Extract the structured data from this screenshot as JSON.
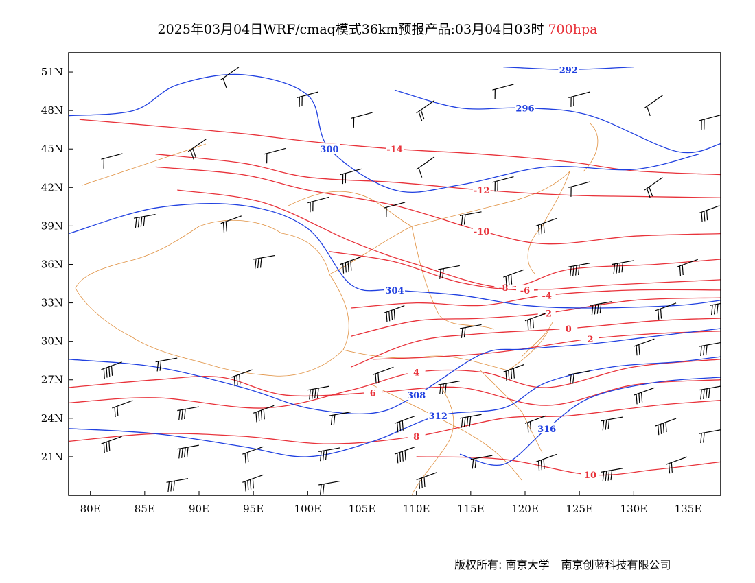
{
  "header": {
    "title": "2025年03月04日WRF/cmaq模式36km预报产品:03月04日03时",
    "level": "700hpa"
  },
  "map": {
    "lon_range": [
      78,
      138
    ],
    "lat_range": [
      18,
      52.5
    ],
    "x_ticks": [
      {
        "lon": 80,
        "label": "80E"
      },
      {
        "lon": 85,
        "label": "85E"
      },
      {
        "lon": 90,
        "label": "90E"
      },
      {
        "lon": 95,
        "label": "95E"
      },
      {
        "lon": 100,
        "label": "100E"
      },
      {
        "lon": 105,
        "label": "105E"
      },
      {
        "lon": 110,
        "label": "110E"
      },
      {
        "lon": 115,
        "label": "115E"
      },
      {
        "lon": 120,
        "label": "120E"
      },
      {
        "lon": 125,
        "label": "125E"
      },
      {
        "lon": 130,
        "label": "130E"
      },
      {
        "lon": 135,
        "label": "135E"
      }
    ],
    "y_ticks": [
      {
        "lat": 51,
        "label": "51N"
      },
      {
        "lat": 48,
        "label": "48N"
      },
      {
        "lat": 45,
        "label": "45N"
      },
      {
        "lat": 42,
        "label": "42N"
      },
      {
        "lat": 39,
        "label": "39N"
      },
      {
        "lat": 36,
        "label": "36N"
      },
      {
        "lat": 33,
        "label": "33N"
      },
      {
        "lat": 30,
        "label": "30N"
      },
      {
        "lat": 27,
        "label": "27N"
      },
      {
        "lat": 24,
        "label": "24N"
      },
      {
        "lat": 21,
        "label": "21N"
      }
    ],
    "colors": {
      "temperature": "#e8323a",
      "geopotential": "#2040e0",
      "boundary": "#e09040",
      "wind": "#000000"
    },
    "temperature_isotherms": [
      {
        "label": "-14",
        "points": [
          [
            79,
            47.3
          ],
          [
            86,
            46.8
          ],
          [
            94,
            46.2
          ],
          [
            100,
            45.6
          ],
          [
            108,
            45.0
          ],
          [
            116,
            44.6
          ],
          [
            124,
            44.0
          ],
          [
            130,
            43.3
          ],
          [
            138,
            43.0
          ]
        ]
      },
      {
        "label": "-12",
        "points": [
          [
            86,
            44.6
          ],
          [
            94,
            43.9
          ],
          [
            100,
            42.8
          ],
          [
            108,
            42.4
          ],
          [
            116,
            41.8
          ],
          [
            124,
            41.4
          ],
          [
            130,
            41.3
          ],
          [
            138,
            41.2
          ]
        ]
      },
      {
        "label": "-10",
        "points": [
          [
            86,
            43.6
          ],
          [
            94,
            43.0
          ],
          [
            100,
            41.8
          ],
          [
            108,
            40.6
          ],
          [
            116,
            38.6
          ],
          [
            122,
            37.6
          ],
          [
            130,
            38.2
          ],
          [
            138,
            38.4
          ]
        ]
      },
      {
        "label": "-8",
        "points": [
          [
            88,
            41.8
          ],
          [
            96,
            40.8
          ],
          [
            104,
            37.8
          ],
          [
            110,
            36.0
          ],
          [
            118,
            34.2
          ],
          [
            124,
            35.6
          ],
          [
            132,
            36.0
          ],
          [
            138,
            36.4
          ]
        ]
      },
      {
        "label": "-6",
        "points": [
          [
            102,
            37.0
          ],
          [
            108,
            36.2
          ],
          [
            114,
            34.6
          ],
          [
            120,
            34.0
          ],
          [
            128,
            34.4
          ],
          [
            138,
            34.8
          ]
        ]
      },
      {
        "label": "-4",
        "points": [
          [
            104,
            32.6
          ],
          [
            110,
            33.0
          ],
          [
            116,
            32.8
          ],
          [
            122,
            33.6
          ],
          [
            130,
            34.0
          ],
          [
            138,
            34.0
          ]
        ]
      },
      {
        "label": "-2",
        "points": [
          [
            104,
            30.4
          ],
          [
            110,
            31.6
          ],
          [
            116,
            31.8
          ],
          [
            122,
            32.2
          ],
          [
            130,
            33.2
          ],
          [
            138,
            33.4
          ]
        ]
      },
      {
        "label": "0",
        "points": [
          [
            104,
            28.0
          ],
          [
            110,
            30.0
          ],
          [
            116,
            30.6
          ],
          [
            124,
            31.0
          ],
          [
            132,
            31.6
          ],
          [
            138,
            31.8
          ]
        ]
      },
      {
        "label": "2",
        "points": [
          [
            106,
            28.6
          ],
          [
            112,
            28.8
          ],
          [
            118,
            29.2
          ],
          [
            126,
            30.2
          ],
          [
            132,
            30.6
          ],
          [
            138,
            30.8
          ]
        ]
      },
      {
        "label": "4",
        "points": [
          [
            78,
            25.2
          ],
          [
            86,
            25.6
          ],
          [
            96,
            24.8
          ],
          [
            104,
            26.2
          ],
          [
            110,
            27.6
          ],
          [
            116,
            27.6
          ],
          [
            122,
            26.4
          ],
          [
            130,
            28.0
          ],
          [
            138,
            28.6
          ]
        ]
      },
      {
        "label": "6",
        "points": [
          [
            78,
            26.4
          ],
          [
            86,
            27.0
          ],
          [
            92,
            27.2
          ],
          [
            98,
            25.8
          ],
          [
            106,
            26.0
          ],
          [
            114,
            26.4
          ],
          [
            122,
            25.0
          ],
          [
            130,
            26.6
          ],
          [
            138,
            27.0
          ]
        ]
      },
      {
        "label": "8",
        "points": [
          [
            78,
            22.2
          ],
          [
            86,
            22.8
          ],
          [
            94,
            22.6
          ],
          [
            102,
            22.0
          ],
          [
            110,
            22.6
          ],
          [
            118,
            24.0
          ],
          [
            124,
            24.2
          ],
          [
            132,
            25.0
          ],
          [
            138,
            25.4
          ]
        ]
      },
      {
        "label": "10",
        "points": [
          [
            110,
            21.0
          ],
          [
            118,
            20.8
          ],
          [
            126,
            19.6
          ],
          [
            132,
            20.0
          ],
          [
            138,
            20.6
          ]
        ]
      }
    ],
    "height_contours": [
      {
        "label": "292",
        "points": [
          [
            118,
            51.4
          ],
          [
            124,
            51.2
          ],
          [
            130,
            51.4
          ]
        ]
      },
      {
        "label": "296",
        "points": [
          [
            108,
            49.6
          ],
          [
            114,
            48.2
          ],
          [
            120,
            48.2
          ],
          [
            126,
            47.6
          ],
          [
            134,
            44.8
          ],
          [
            138,
            45.4
          ]
        ]
      },
      {
        "label": "300",
        "points": [
          [
            78,
            47.6
          ],
          [
            84,
            48.0
          ],
          [
            88,
            50.0
          ],
          [
            94,
            50.8
          ],
          [
            100,
            49.2
          ],
          [
            102,
            45.0
          ],
          [
            108,
            41.8
          ],
          [
            114,
            42.2
          ],
          [
            122,
            43.6
          ],
          [
            130,
            43.4
          ],
          [
            136,
            44.6
          ]
        ]
      },
      {
        "label": "304",
        "points": [
          [
            78,
            38.4
          ],
          [
            86,
            40.4
          ],
          [
            94,
            40.6
          ],
          [
            100,
            38.8
          ],
          [
            104,
            34.4
          ],
          [
            108,
            34.0
          ],
          [
            114,
            33.6
          ],
          [
            120,
            32.8
          ],
          [
            126,
            32.6
          ],
          [
            134,
            32.8
          ],
          [
            138,
            33.2
          ]
        ]
      },
      {
        "label": "308",
        "points": [
          [
            78,
            28.6
          ],
          [
            86,
            28.0
          ],
          [
            94,
            26.4
          ],
          [
            100,
            24.8
          ],
          [
            106,
            24.4
          ],
          [
            110,
            25.8
          ],
          [
            116,
            29.0
          ],
          [
            120,
            29.4
          ],
          [
            126,
            29.8
          ],
          [
            132,
            30.4
          ],
          [
            138,
            31.0
          ]
        ]
      },
      {
        "label": "312",
        "points": [
          [
            78,
            23.2
          ],
          [
            86,
            22.8
          ],
          [
            94,
            21.8
          ],
          [
            100,
            21.0
          ],
          [
            106,
            22.2
          ],
          [
            112,
            24.2
          ],
          [
            118,
            24.8
          ],
          [
            122,
            26.8
          ],
          [
            128,
            28.0
          ],
          [
            134,
            28.4
          ],
          [
            138,
            28.8
          ]
        ]
      },
      {
        "label": "316",
        "points": [
          [
            114,
            21.2
          ],
          [
            118,
            20.4
          ],
          [
            122,
            23.2
          ],
          [
            126,
            25.6
          ],
          [
            132,
            26.8
          ],
          [
            138,
            27.2
          ]
        ]
      }
    ],
    "wind_barbs": [
      {
        "lon": 92,
        "lat": 50.4
      },
      {
        "lon": 99,
        "lat": 49.0
      },
      {
        "lon": 104,
        "lat": 47.4
      },
      {
        "lon": 110,
        "lat": 47.8
      },
      {
        "lon": 117,
        "lat": 49.6
      },
      {
        "lon": 124,
        "lat": 49.0
      },
      {
        "lon": 131,
        "lat": 48.2
      },
      {
        "lon": 136,
        "lat": 47.2
      },
      {
        "lon": 81,
        "lat": 44.2
      },
      {
        "lon": 89,
        "lat": 44.8
      },
      {
        "lon": 96,
        "lat": 44.6
      },
      {
        "lon": 103,
        "lat": 43.0
      },
      {
        "lon": 110,
        "lat": 43.4
      },
      {
        "lon": 117,
        "lat": 42.4
      },
      {
        "lon": 124,
        "lat": 42.0
      },
      {
        "lon": 131,
        "lat": 41.8
      },
      {
        "lon": 136,
        "lat": 40.0
      },
      {
        "lon": 84,
        "lat": 39.6
      },
      {
        "lon": 92,
        "lat": 39.2
      },
      {
        "lon": 100,
        "lat": 40.8
      },
      {
        "lon": 107,
        "lat": 40.4
      },
      {
        "lon": 114,
        "lat": 39.8
      },
      {
        "lon": 121,
        "lat": 39.0
      },
      {
        "lon": 128,
        "lat": 36.0
      },
      {
        "lon": 134,
        "lat": 35.8
      },
      {
        "lon": 95,
        "lat": 36.4
      },
      {
        "lon": 103,
        "lat": 36.0
      },
      {
        "lon": 112,
        "lat": 35.6
      },
      {
        "lon": 118,
        "lat": 35.0
      },
      {
        "lon": 124,
        "lat": 35.8
      },
      {
        "lon": 132,
        "lat": 32.4
      },
      {
        "lon": 137,
        "lat": 32.8
      },
      {
        "lon": 107,
        "lat": 32.2
      },
      {
        "lon": 114,
        "lat": 31.0
      },
      {
        "lon": 120,
        "lat": 31.6
      },
      {
        "lon": 126,
        "lat": 32.8
      },
      {
        "lon": 130,
        "lat": 29.6
      },
      {
        "lon": 136,
        "lat": 29.6
      },
      {
        "lon": 81,
        "lat": 27.8
      },
      {
        "lon": 86,
        "lat": 28.4
      },
      {
        "lon": 93,
        "lat": 27.2
      },
      {
        "lon": 100,
        "lat": 26.2
      },
      {
        "lon": 106,
        "lat": 27.4
      },
      {
        "lon": 112,
        "lat": 26.6
      },
      {
        "lon": 118,
        "lat": 27.6
      },
      {
        "lon": 124,
        "lat": 27.4
      },
      {
        "lon": 130,
        "lat": 25.8
      },
      {
        "lon": 136,
        "lat": 26.2
      },
      {
        "lon": 82,
        "lat": 24.8
      },
      {
        "lon": 88,
        "lat": 24.6
      },
      {
        "lon": 95,
        "lat": 24.4
      },
      {
        "lon": 102,
        "lat": 24.2
      },
      {
        "lon": 108,
        "lat": 23.6
      },
      {
        "lon": 114,
        "lat": 24.0
      },
      {
        "lon": 120,
        "lat": 23.6
      },
      {
        "lon": 127,
        "lat": 23.8
      },
      {
        "lon": 132,
        "lat": 23.4
      },
      {
        "lon": 136,
        "lat": 22.8
      },
      {
        "lon": 81,
        "lat": 22.0
      },
      {
        "lon": 88,
        "lat": 21.6
      },
      {
        "lon": 94,
        "lat": 21.2
      },
      {
        "lon": 101,
        "lat": 21.4
      },
      {
        "lon": 108,
        "lat": 21.2
      },
      {
        "lon": 115,
        "lat": 20.8
      },
      {
        "lon": 121,
        "lat": 20.6
      },
      {
        "lon": 127,
        "lat": 19.8
      },
      {
        "lon": 133,
        "lat": 20.4
      },
      {
        "lon": 87,
        "lat": 19.0
      },
      {
        "lon": 94,
        "lat": 19.0
      },
      {
        "lon": 101,
        "lat": 18.8
      },
      {
        "lon": 110,
        "lat": 19.2
      }
    ]
  },
  "footer": {
    "copyright": "版权所有: 南京大学",
    "company": "南京创蓝科技有限公司"
  }
}
